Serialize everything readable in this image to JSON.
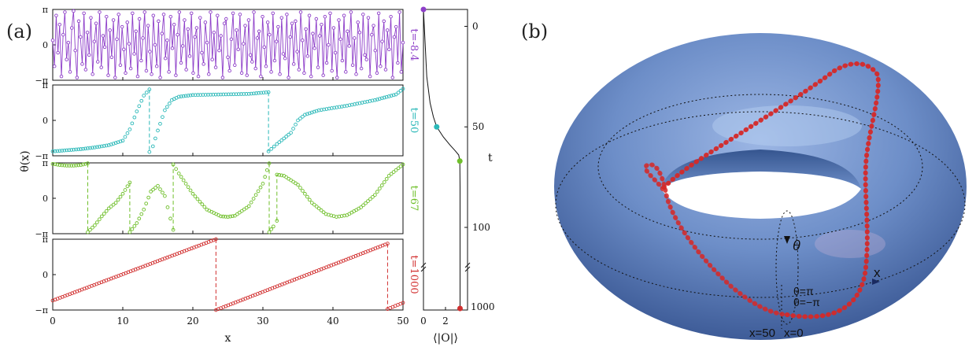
{
  "panel_labels": {
    "a": "(a)",
    "b": "(b)"
  },
  "colors": {
    "t0": "#8e3fc9",
    "t50": "#2ab8b8",
    "t67": "#6fbf2a",
    "t1000": "#d12f2f",
    "torus": "#6d8ec8",
    "torus_dark": "#4a6aa8",
    "curve": "#d42a2a"
  },
  "chart_data": [
    {
      "type": "scatter",
      "title": "",
      "xlabel": "x",
      "ylabel": "θ(x)",
      "xlim": [
        0,
        50
      ],
      "ylim": [
        -3.14159,
        3.14159
      ],
      "x_ticks": [
        "0",
        "10",
        "20",
        "30",
        "40",
        "50"
      ],
      "y_ticks": [
        "−π",
        "0",
        "π"
      ],
      "grid": false,
      "series": [
        {
          "name": "t=-8.4",
          "color": "#8e3fc9",
          "kind": "random",
          "values": [
            0.4,
            -1.9,
            2.6,
            -0.7,
            1.8,
            -2.8,
            0.9,
            2.9,
            -1.3,
            0.2,
            -2.4,
            1.5,
            3.0,
            -0.5,
            -2.9,
            2.1,
            0.7,
            -1.7,
            2.8,
            -2.2,
            1.1,
            -0.9,
            2.4,
            -2.6,
            0.3,
            1.9,
            -1.5,
            2.9,
            -2.0,
            0.8,
            -0.2,
            2.5,
            -2.7,
            1.3,
            -1.1,
            2.2,
            -2.9,
            0.5,
            2.7,
            -1.8,
            1.6,
            -0.4,
            -2.5,
            2.0,
            0.1,
            -2.1,
            2.8,
            -0.8,
            1.2,
            -2.8,
            2.3,
            -1.4,
            0.6,
            2.9,
            -2.3,
            1.7,
            -0.6,
            -2.6,
            2.6,
            0.0,
            -1.9,
            2.1,
            -2.9,
            1.0,
            2.7,
            -1.2,
            0.4,
            -2.4,
            2.5,
            -0.3,
            1.8,
            -2.7,
            0.9,
            2.9,
            -1.6,
            -0.1,
            2.2,
            -2.2,
            1.4,
            -1.0,
            2.8,
            -2.5,
            0.7,
            1.5,
            -2.8,
            2.4,
            -0.7,
            -1.7,
            2.0,
            0.2,
            -2.6,
            2.9,
            -1.3,
            1.1,
            -2.0,
            2.6,
            -0.5,
            0.8,
            -2.9,
            1.9,
            2.3,
            -1.1,
            -2.3,
            0.5,
            2.8,
            -1.8,
            1.3,
            -0.4,
            2.7,
            -2.5,
            0.1,
            1.7,
            -2.7,
            2.2,
            -0.9,
            -1.5,
            2.9,
            -2.1,
            0.6,
            1.2,
            -2.8,
            2.5,
            -0.2,
            -1.9,
            2.0,
            0.9,
            -2.4,
            2.8,
            -1.4,
            0.3,
            1.6,
            -2.6,
            2.4,
            -0.8,
            -1.2,
            2.7,
            -2.9,
            0.7,
            1.9,
            -1.7,
            2.1,
            -0.6,
            -2.2,
            2.9,
            0.4,
            -2.5,
            1.4,
            -1.0,
            2.6,
            -2.8,
            1.0,
            -0.3,
            2.3,
            -2.0,
            0.8,
            1.8,
            -2.7,
            2.5,
            -1.6,
            0.0,
            2.8,
            -2.3,
            1.5,
            -0.7,
            -2.9,
            2.2,
            0.5,
            -1.4,
            2.6,
            -2.4,
            1.2,
            -0.1,
            2.9,
            -1.8,
            0.6,
            -2.6,
            2.0,
            1.1,
            -2.1,
            2.7,
            -0.9,
            -1.3,
            2.4,
            -2.8,
            0.9,
            1.7,
            -0.5,
            -2.5,
            2.8,
            -1.9,
            0.3,
            2.1,
            -2.2,
            1.3,
            -0.4,
            2.5,
            -2.9,
            0.7,
            1.6,
            -1.6,
            2.9,
            -2.4,
            0.2
          ]
        },
        {
          "name": "t=50",
          "color": "#2ab8b8",
          "kind": "piecewise",
          "segments": [
            {
              "x": [
                0,
                2,
                4,
                6,
                8,
                10,
                11,
                12,
                13,
                13.8
              ],
              "y": [
                -2.75,
                -2.65,
                -2.55,
                -2.4,
                -2.2,
                -1.8,
                -0.8,
                0.8,
                2.2,
                2.75
              ]
            },
            {
              "x": [
                13.8,
                14.3,
                15,
                16,
                17,
                18,
                20,
                24,
                28,
                30.8
              ],
              "y": [
                -2.8,
                -2.3,
                -0.9,
                0.9,
                1.8,
                2.1,
                2.25,
                2.3,
                2.35,
                2.5
              ]
            },
            {
              "x": [
                30.8,
                32,
                34,
                35,
                36,
                38,
                42,
                46,
                49,
                50
              ],
              "y": [
                -2.75,
                -2.1,
                -1.1,
                0.0,
                0.5,
                0.9,
                1.3,
                1.8,
                2.3,
                2.8
              ]
            }
          ]
        },
        {
          "name": "t=67",
          "color": "#6fbf2a",
          "kind": "piecewise",
          "segments": [
            {
              "x": [
                0,
                1,
                2,
                3,
                4,
                5
              ],
              "y": [
                3.05,
                2.95,
                2.9,
                2.9,
                2.95,
                3.1
              ]
            },
            {
              "x": [
                5,
                6,
                7,
                8,
                9,
                10,
                11
              ],
              "y": [
                -3.0,
                -2.4,
                -1.6,
                -0.9,
                -0.4,
                0.4,
                1.4
              ]
            },
            {
              "x": [
                11,
                12,
                13,
                14,
                15,
                16,
                17.2
              ],
              "y": [
                -3.0,
                -2.2,
                -1.0,
                0.6,
                1.1,
                0.2,
                -2.8
              ]
            },
            {
              "x": [
                17.2,
                18,
                20,
                22,
                24,
                25,
                26,
                28,
                30,
                30.9
              ],
              "y": [
                3.0,
                2.2,
                0.4,
                -1.0,
                -1.6,
                -1.65,
                -1.55,
                -0.7,
                1.3,
                3.1
              ]
            },
            {
              "x": [
                30.9,
                31.5,
                32
              ],
              "y": [
                -3.0,
                -2.5,
                -2.0
              ]
            },
            {
              "x": [
                32,
                33,
                35,
                37,
                39,
                40.5,
                42,
                44,
                46,
                48,
                50
              ],
              "y": [
                2.1,
                2.0,
                1.2,
                -0.4,
                -1.4,
                -1.65,
                -1.5,
                -0.8,
                0.3,
                2.0,
                3.0
              ]
            }
          ]
        },
        {
          "name": "t=1000",
          "color": "#d12f2f",
          "kind": "piecewise",
          "segments": [
            {
              "x": [
                0,
                23.3
              ],
              "y": [
                -2.3,
                3.14
              ]
            },
            {
              "x": [
                23.3,
                47.8
              ],
              "y": [
                -3.14,
                2.75
              ]
            },
            {
              "x": [
                47.8,
                50
              ],
              "y": [
                -3.05,
                -2.5
              ]
            }
          ]
        }
      ]
    },
    {
      "type": "line",
      "title": "",
      "xlabel": "⟨|O|⟩",
      "ylabel": "t",
      "xlim": [
        0,
        4
      ],
      "x_ticks": [
        "0",
        "2"
      ],
      "y_ticks": [
        "0",
        "50",
        "100",
        "1000"
      ],
      "axis_break": true,
      "series": [
        {
          "name": "",
          "x": [
            0.0,
            0.3,
            0.6,
            0.9,
            1.2,
            1.8,
            2.4,
            2.9,
            3.2,
            3.3,
            3.32
          ],
          "y": [
            -8.4,
            25,
            38,
            45,
            50,
            55,
            59,
            62,
            64,
            67,
            80
          ]
        }
      ],
      "markers": [
        {
          "label": "t=-8.4",
          "x": 0,
          "y": -8.4,
          "color": "#8e3fc9"
        },
        {
          "label": "t=50",
          "x": 1.2,
          "y": 50,
          "color": "#2ab8b8"
        },
        {
          "label": "t=67",
          "x": 3.3,
          "y": 67,
          "color": "#6fbf2a"
        },
        {
          "label": "t=1000",
          "x": 3.32,
          "y": 1000,
          "color": "#d12f2f"
        }
      ]
    }
  ],
  "torus_labels": {
    "theta": "θ",
    "theta_pi": "θ=π",
    "theta_minus_pi": "θ=−π",
    "x_arrow": "x",
    "x50": "x=50",
    "x0": "x=0"
  }
}
